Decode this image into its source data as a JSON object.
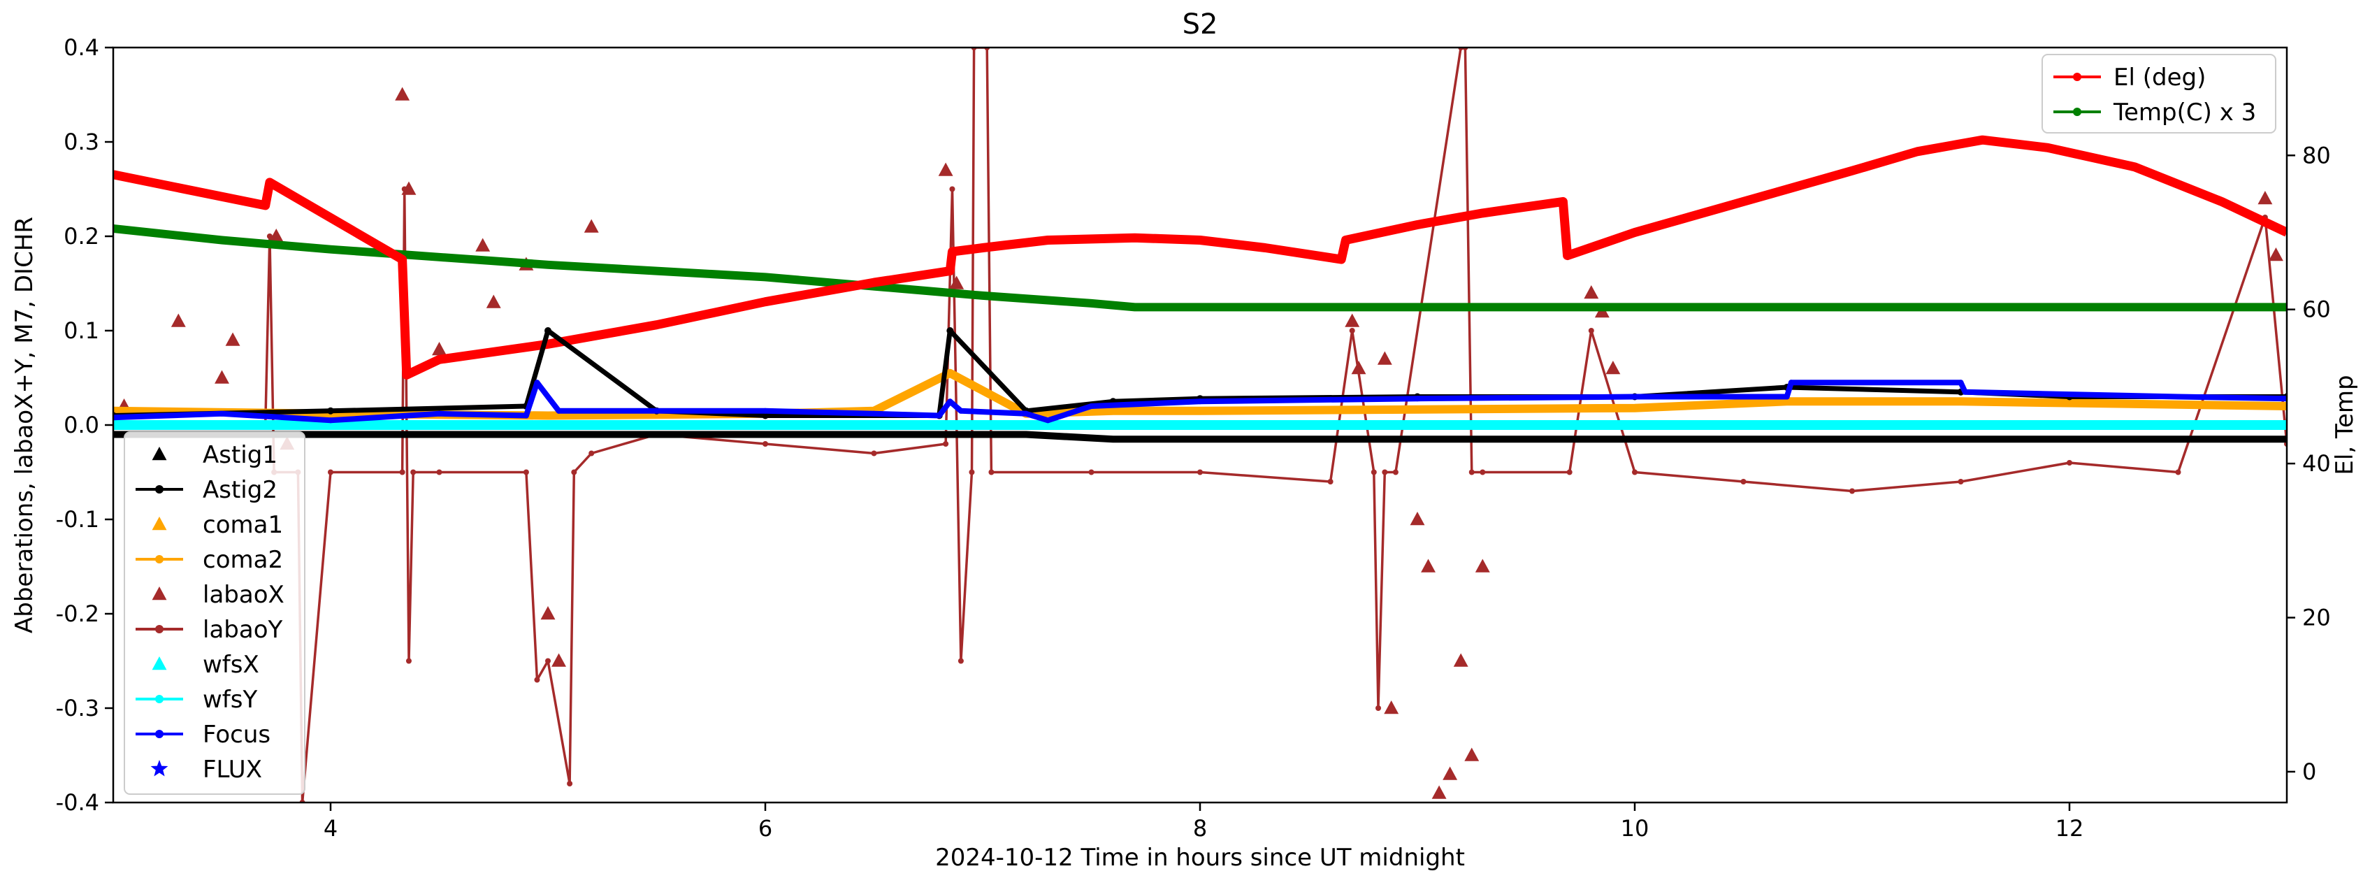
{
  "chart_data": {
    "type": "scatter",
    "title": "S2",
    "xlabel": "2024-10-12  Time in hours since UT midnight",
    "ylabel_left": "Abberations, labaoX+Y, M7, DICHR",
    "ylabel_right": "El, Temp",
    "xlim": [
      3.0,
      13.0
    ],
    "ylim_left": [
      -0.4,
      0.4
    ],
    "ylim_right": [
      -4,
      94
    ],
    "x_ticks": [
      4,
      6,
      8,
      10,
      12
    ],
    "y_ticks_left": [
      "0.4",
      "0.3",
      "0.2",
      "0.1",
      "0.0",
      "-0.1",
      "-0.2",
      "-0.3",
      "-0.4"
    ],
    "y_ticks_right": [
      "80",
      "60",
      "40",
      "20",
      "0"
    ],
    "grid": false,
    "legend_left": {
      "placement": "lower-left",
      "entries": [
        {
          "label": "Astig1",
          "color": "#000000",
          "marker": "triangle",
          "line": false
        },
        {
          "label": "Astig2",
          "color": "#000000",
          "marker": "dot",
          "line": true
        },
        {
          "label": "coma1",
          "color": "#ffa500",
          "marker": "triangle",
          "line": false
        },
        {
          "label": "coma2",
          "color": "#ffa500",
          "marker": "dot",
          "line": true
        },
        {
          "label": "labaoX",
          "color": "#a52a2a",
          "marker": "triangle",
          "line": false
        },
        {
          "label": "labaoY",
          "color": "#a52a2a",
          "marker": "dot",
          "line": true
        },
        {
          "label": "wfsX",
          "color": "#00ffff",
          "marker": "triangle",
          "line": false
        },
        {
          "label": "wfsY",
          "color": "#00ffff",
          "marker": "dot",
          "line": true
        },
        {
          "label": "Focus",
          "color": "#0000ff",
          "marker": "dot",
          "line": true
        },
        {
          "label": "FLUX",
          "color": "#0000ff",
          "marker": "star",
          "line": false
        }
      ]
    },
    "legend_right": {
      "placement": "top-right",
      "entries": [
        {
          "label": "El (deg)",
          "color": "#ff0000"
        },
        {
          "label": "Temp(C) x 3",
          "color": "#008000"
        }
      ]
    },
    "series": [
      {
        "name": "El (deg)",
        "axis": "right",
        "color": "#ff0000",
        "x": [
          3.0,
          3.7,
          3.72,
          4.33,
          4.35,
          4.5,
          5.0,
          5.5,
          6.0,
          6.5,
          6.85,
          6.86,
          7.0,
          7.3,
          7.7,
          8.0,
          8.3,
          8.65,
          8.67,
          9.0,
          9.3,
          9.67,
          9.69,
          10.0,
          10.5,
          11.0,
          11.3,
          11.6,
          11.9,
          12.3,
          12.7,
          13.0
        ],
        "y": [
          77.5,
          73.5,
          76.5,
          66.5,
          51.5,
          53.5,
          55.5,
          58,
          61,
          63.5,
          65,
          67.5,
          68,
          69,
          69.3,
          69,
          68,
          66.5,
          69,
          71,
          72.5,
          74,
          67,
          70,
          74,
          78,
          80.5,
          82,
          81,
          78.5,
          74,
          70
        ]
      },
      {
        "name": "Temp(C) x 3",
        "axis": "right",
        "color": "#008000",
        "x": [
          3.0,
          3.5,
          4.0,
          4.5,
          5.0,
          5.5,
          6.0,
          6.5,
          7.0,
          7.5,
          7.7,
          13.0
        ],
        "y": [
          70.5,
          69,
          67.8,
          66.8,
          65.8,
          65.0,
          64.2,
          63.0,
          61.8,
          60.8,
          60.3,
          60.3
        ]
      },
      {
        "name": "Astig2",
        "axis": "left",
        "color": "#000000",
        "x": [
          3.0,
          4.0,
          4.9,
          5.0,
          5.5,
          6.0,
          6.8,
          6.85,
          7.2,
          7.6,
          8.0,
          9.0,
          10.0,
          10.7,
          11.5,
          12.0,
          13.0
        ],
        "y": [
          0.01,
          0.015,
          0.02,
          0.1,
          0.015,
          0.01,
          0.01,
          0.1,
          0.015,
          0.025,
          0.028,
          0.03,
          0.03,
          0.04,
          0.035,
          0.03,
          0.03
        ]
      },
      {
        "name": "Astig1",
        "axis": "left",
        "color": "#000000",
        "x": [
          3.0,
          5.0,
          7.2,
          7.6,
          10.0,
          13.0
        ],
        "y": [
          -0.01,
          -0.01,
          -0.01,
          -0.015,
          -0.015,
          -0.015
        ]
      },
      {
        "name": "coma1",
        "axis": "left",
        "color": "#ffa500",
        "x": [
          3.0,
          4.0,
          5.0,
          6.0,
          6.5,
          6.85,
          7.2,
          7.6,
          8.0,
          10.0,
          10.7,
          11.5,
          13.0
        ],
        "y": [
          0.015,
          0.012,
          0.01,
          0.012,
          0.015,
          0.055,
          0.012,
          0.015,
          0.015,
          0.018,
          0.025,
          0.025,
          0.02
        ]
      },
      {
        "name": "wfsX",
        "axis": "left",
        "color": "#00ffff",
        "x": [
          3.0,
          13.0
        ],
        "y": [
          0.0,
          0.0
        ]
      },
      {
        "name": "Focus",
        "axis": "left",
        "color": "#0000ff",
        "x": [
          3.0,
          3.5,
          4.0,
          4.5,
          4.9,
          4.95,
          5.05,
          5.5,
          6.0,
          6.5,
          6.8,
          6.85,
          6.9,
          7.2,
          7.3,
          7.5,
          8.0,
          9.0,
          10.0,
          10.7,
          10.72,
          11.5,
          11.52,
          12.5,
          13.0
        ],
        "y": [
          0.008,
          0.012,
          0.005,
          0.012,
          0.01,
          0.045,
          0.015,
          0.015,
          0.015,
          0.012,
          0.01,
          0.025,
          0.015,
          0.012,
          0.005,
          0.02,
          0.025,
          0.028,
          0.03,
          0.03,
          0.045,
          0.045,
          0.035,
          0.03,
          0.028
        ]
      },
      {
        "name": "labaoY",
        "axis": "left",
        "color": "#a52a2a",
        "x": [
          3.0,
          3.5,
          3.7,
          3.72,
          3.74,
          3.85,
          3.87,
          4.0,
          4.33,
          4.34,
          4.36,
          4.38,
          4.5,
          4.9,
          4.95,
          5.0,
          5.1,
          5.12,
          5.2,
          5.5,
          6.0,
          6.5,
          6.83,
          6.86,
          6.9,
          6.95,
          6.96,
          7.02,
          7.04,
          7.5,
          8.0,
          8.6,
          8.7,
          8.8,
          8.82,
          8.85,
          8.9,
          9.2,
          9.22,
          9.25,
          9.3,
          9.7,
          9.8,
          10.0,
          10.5,
          11.0,
          11.5,
          12.0,
          12.5,
          12.9,
          13.0
        ],
        "y": [
          0.0,
          0.0,
          0.0,
          0.2,
          -0.05,
          -0.05,
          -0.4,
          -0.05,
          -0.05,
          0.25,
          -0.25,
          -0.05,
          -0.05,
          -0.05,
          -0.27,
          -0.25,
          -0.38,
          -0.05,
          -0.03,
          -0.01,
          -0.02,
          -0.03,
          -0.02,
          0.25,
          -0.25,
          -0.05,
          0.4,
          0.4,
          -0.05,
          -0.05,
          -0.05,
          -0.06,
          0.1,
          -0.05,
          -0.3,
          -0.05,
          -0.05,
          0.4,
          0.4,
          -0.05,
          -0.05,
          -0.05,
          0.1,
          -0.05,
          -0.06,
          -0.07,
          -0.06,
          -0.04,
          -0.05,
          0.22,
          -0.02
        ]
      },
      {
        "name": "labaoX",
        "axis": "left",
        "color": "#a52a2a",
        "x": [
          3.05,
          3.3,
          3.5,
          3.55,
          3.75,
          3.8,
          4.33,
          4.36,
          4.5,
          4.7,
          4.75,
          4.9,
          5.0,
          5.05,
          5.2,
          6.83,
          6.88,
          8.7,
          8.73,
          8.85,
          8.88,
          9.0,
          9.05,
          9.1,
          9.15,
          9.2,
          9.25,
          9.3,
          9.8,
          9.85,
          9.9,
          12.9,
          12.95
        ],
        "y": [
          0.02,
          0.11,
          0.05,
          0.09,
          0.2,
          -0.02,
          0.35,
          0.25,
          0.08,
          0.19,
          0.13,
          0.17,
          -0.2,
          -0.25,
          0.21,
          0.27,
          0.15,
          0.11,
          0.06,
          0.07,
          -0.3,
          -0.1,
          -0.15,
          -0.39,
          -0.37,
          -0.25,
          -0.35,
          -0.15,
          0.14,
          0.12,
          0.06,
          0.24,
          0.18
        ]
      }
    ]
  }
}
